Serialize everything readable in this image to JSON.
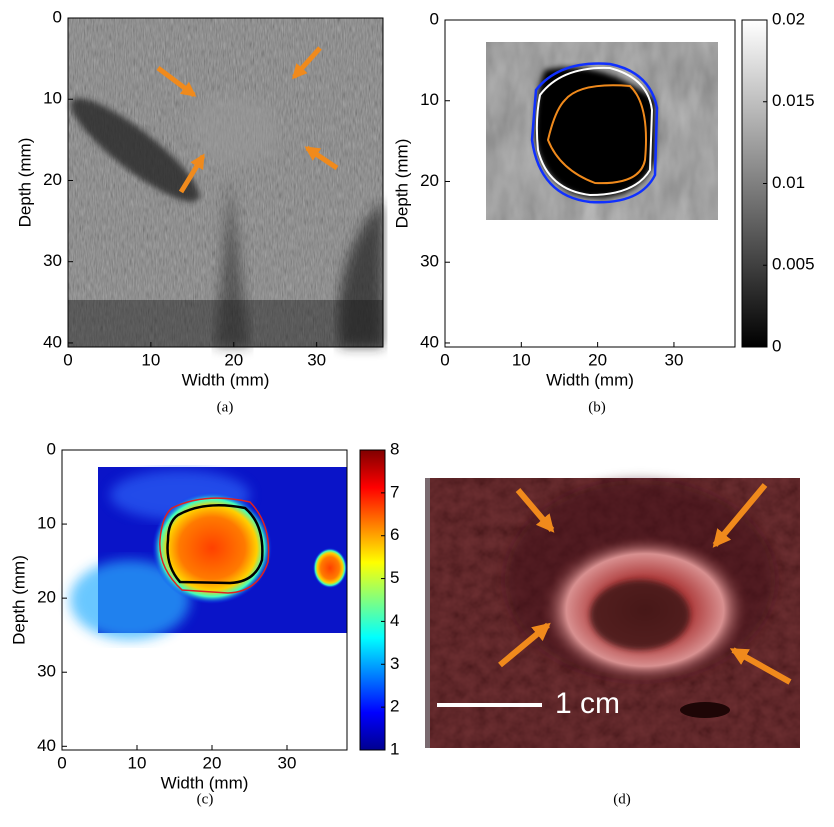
{
  "chart_data": [
    {
      "type": "image",
      "caption": "(a)",
      "xlabel": "Width (mm)",
      "ylabel": "Depth (mm)",
      "xlim": [
        0,
        38
      ],
      "ylim": [
        0,
        40.5
      ],
      "invert_y": true,
      "xticks": [
        0,
        10,
        20,
        30
      ],
      "yticks": [
        0,
        10,
        20,
        30,
        40
      ]
    },
    {
      "type": "heatmap",
      "caption": "(b)",
      "xlabel": "Width (mm)",
      "ylabel": "Depth (mm)",
      "xlim": [
        0,
        38
      ],
      "ylim": [
        0,
        40.5
      ],
      "invert_y": true,
      "xticks": [
        0,
        10,
        20,
        30
      ],
      "yticks": [
        0,
        10,
        20,
        30,
        40
      ],
      "colormap": "gray",
      "clim": [
        0,
        0.02
      ],
      "cticks": [
        0,
        0.005,
        0.01,
        0.015,
        0.02
      ]
    },
    {
      "type": "heatmap",
      "caption": "(c)",
      "xlabel": "Width (mm)",
      "ylabel": "Depth (mm)",
      "xlim": [
        0,
        38
      ],
      "ylim": [
        0,
        40.5
      ],
      "invert_y": true,
      "xticks": [
        0,
        10,
        20,
        30
      ],
      "yticks": [
        0,
        10,
        20,
        30,
        40
      ],
      "colormap": "jet",
      "clim": [
        1,
        8
      ],
      "cticks": [
        1,
        2,
        3,
        4,
        5,
        6,
        7,
        8
      ]
    },
    {
      "type": "photo",
      "caption": "(d)",
      "scale_label": "1 cm"
    }
  ]
}
